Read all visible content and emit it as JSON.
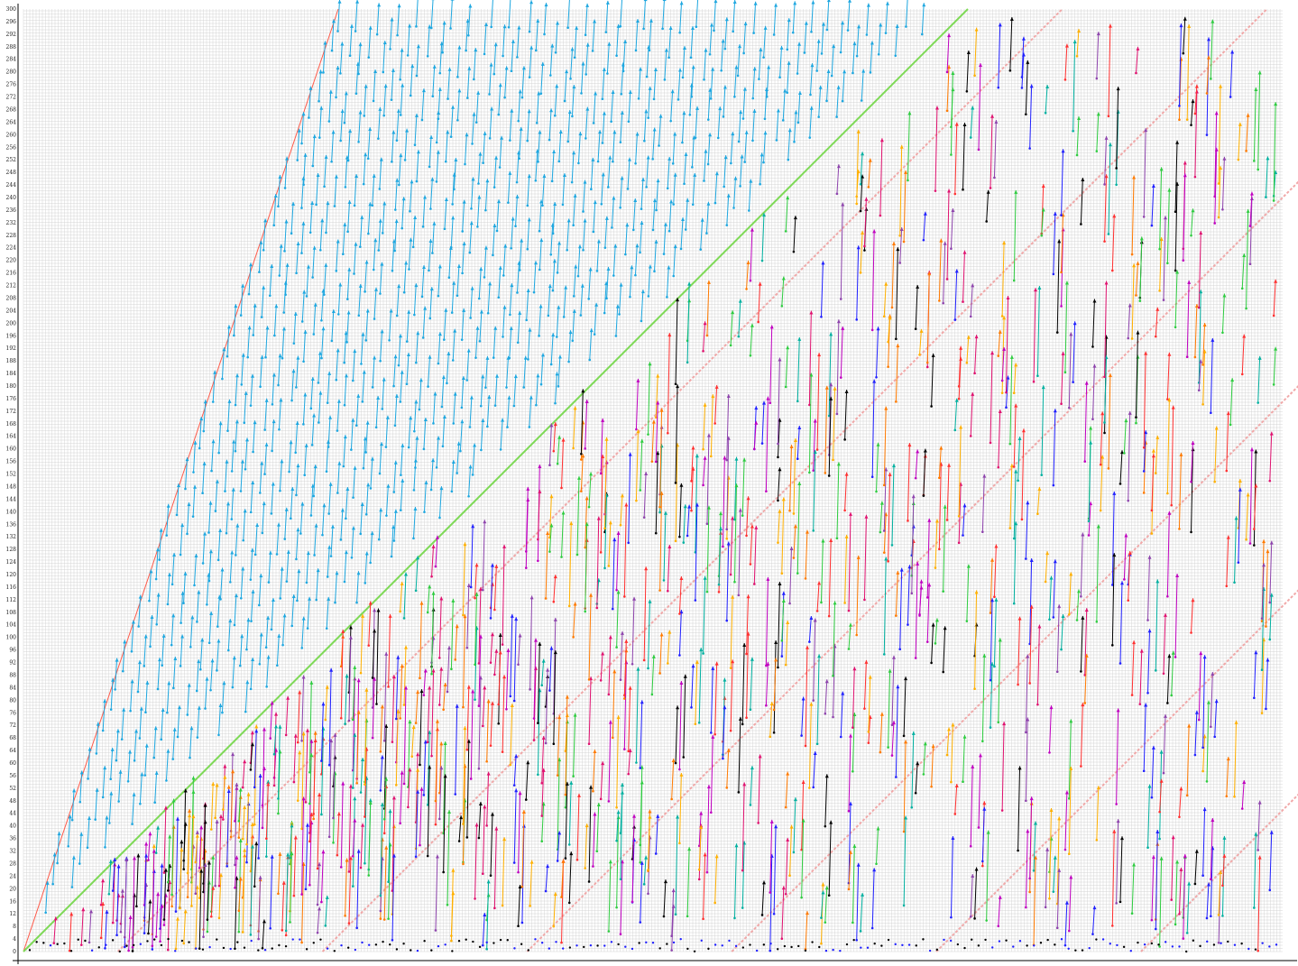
{
  "chart_data": {
    "type": "scatter",
    "title": "",
    "xlabel": "",
    "ylabel": "",
    "xlim": [
      0,
      400
    ],
    "ylim": [
      0,
      300
    ],
    "grid": true,
    "y_ticks": [
      0,
      4,
      8,
      12,
      16,
      20,
      24,
      28,
      32,
      36,
      40,
      44,
      48,
      52,
      56,
      60,
      64,
      68,
      72,
      76,
      80,
      84,
      88,
      92,
      96,
      100,
      104,
      108,
      112,
      116,
      120,
      124,
      128,
      132,
      136,
      140,
      144,
      148,
      152,
      156,
      160,
      164,
      168,
      172,
      176,
      180,
      184,
      188,
      192,
      196,
      200,
      204,
      208,
      212,
      216,
      220,
      224,
      228,
      232,
      236,
      240,
      244,
      248,
      252,
      256,
      260,
      264,
      268,
      272,
      276,
      280,
      284,
      288,
      292,
      296,
      300
    ],
    "lines": [
      {
        "kind": "reference",
        "color": "#ff5a4a",
        "x": [
          0,
          100
        ],
        "y": [
          0,
          300
        ]
      },
      {
        "kind": "reference",
        "color": "#7ed957",
        "x": [
          0,
          300
        ],
        "y": [
          0,
          300
        ]
      }
    ],
    "dashed_bands_slope": 1,
    "dashed_band_offsets": [
      30,
      95,
      160,
      225,
      290,
      355
    ],
    "band_color": "#f0a0a0",
    "series_colors": [
      "#1ea7e0",
      "#ff3030",
      "#ff7a00",
      "#2ecc40",
      "#c000c0",
      "#e0116f",
      "#000000",
      "#2020ff",
      "#8e44ad",
      "#ffb000",
      "#00b0a0"
    ],
    "arrow_spacing": 4,
    "arrow_length": 10
  }
}
